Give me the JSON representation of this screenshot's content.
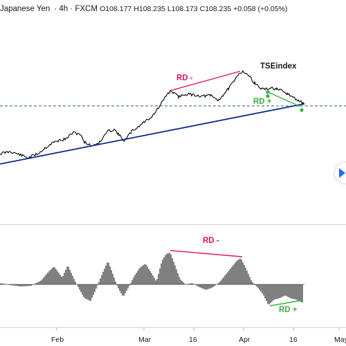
{
  "header": {
    "symbol": "Japanese Yen",
    "interval": "4h",
    "source": "FXCM",
    "open": "O108.177",
    "high": "H108.235",
    "low": "L108.173",
    "close": "C108.235",
    "change": "+0.058 (+0.05%)"
  },
  "annotations": {
    "rd_minus_price": "RD -",
    "rd_plus_price": "RD +",
    "tseindex": "TSEindex",
    "rd_minus_osc": "RD -",
    "rd_plus_osc": "RD +"
  },
  "x_axis": [
    "Feb",
    "Mar",
    "16",
    "Apr",
    "16",
    "May"
  ],
  "colors": {
    "price": "#000000",
    "trendline": "#0d2a8c",
    "rd_minus": "#e0115f",
    "rd_plus": "#3fae3f",
    "dashed_level": "#1e5f7a",
    "nav_chevron": "#2962ff"
  },
  "icons": {
    "scroll_right": "chevron-right-icon"
  }
}
